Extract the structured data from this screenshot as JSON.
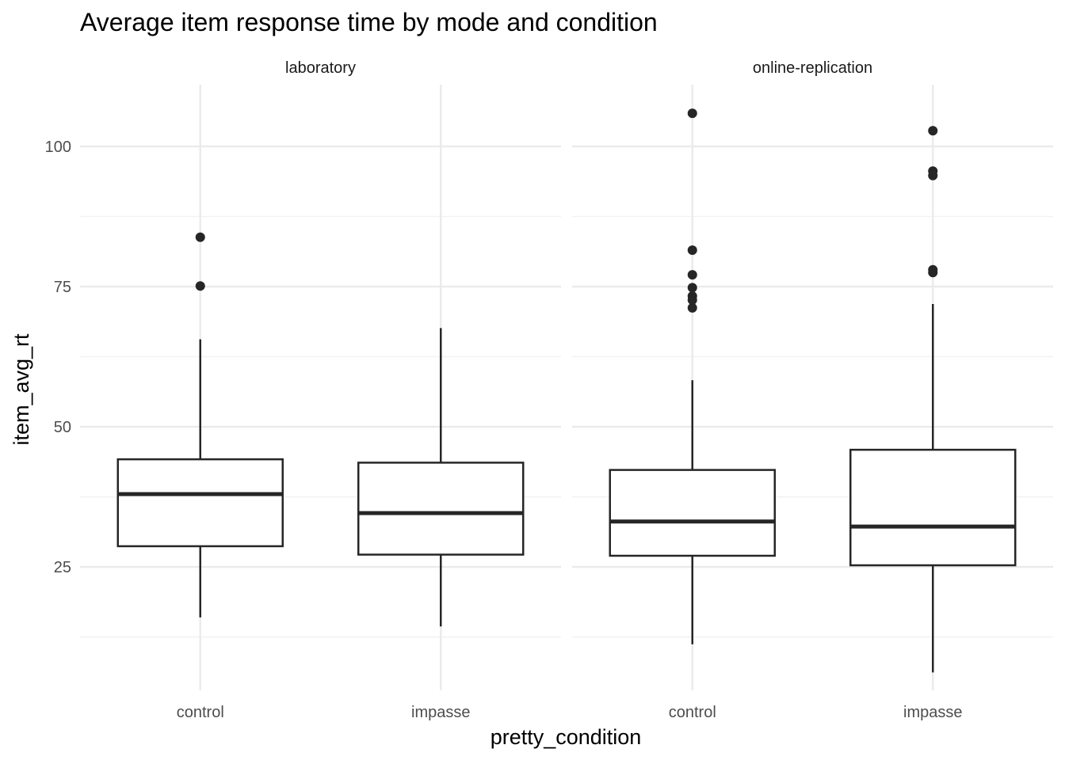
{
  "chart_data": {
    "type": "boxplot",
    "title": "Average item response time by mode and condition",
    "xlabel": "pretty_condition",
    "ylabel": "item_avg_rt",
    "ylim": [
      3,
      111
    ],
    "y_major_ticks": [
      25,
      50,
      75,
      100
    ],
    "y_minor_ticks": [
      12.5,
      37.5,
      62.5,
      87.5
    ],
    "grid": true,
    "colors": {
      "box_stroke": "#262626",
      "outlier": "#262626",
      "grid_major": "#ebebeb",
      "grid_minor": "#f2f2f2"
    },
    "facets": [
      {
        "label": "laboratory",
        "categories": [
          "control",
          "impasse"
        ],
        "boxes": [
          {
            "category": "control",
            "lower_whisker": 16.0,
            "q1": 28.7,
            "median": 38.0,
            "q3": 44.2,
            "upper_whisker": 65.6,
            "outliers": [
              75.1,
              83.8
            ]
          },
          {
            "category": "impasse",
            "lower_whisker": 14.4,
            "q1": 27.2,
            "median": 34.6,
            "q3": 43.6,
            "upper_whisker": 67.6,
            "outliers": []
          }
        ]
      },
      {
        "label": "online-replication",
        "categories": [
          "control",
          "impasse"
        ],
        "boxes": [
          {
            "category": "control",
            "lower_whisker": 11.2,
            "q1": 27.0,
            "median": 33.1,
            "q3": 42.3,
            "upper_whisker": 58.3,
            "outliers": [
              71.2,
              72.6,
              73.3,
              74.8,
              77.1,
              81.5,
              105.9
            ]
          },
          {
            "category": "impasse",
            "lower_whisker": 6.2,
            "q1": 25.3,
            "median": 32.2,
            "q3": 45.9,
            "upper_whisker": 71.9,
            "outliers": [
              77.5,
              78.0,
              94.8,
              95.6,
              102.8
            ]
          }
        ]
      }
    ]
  }
}
